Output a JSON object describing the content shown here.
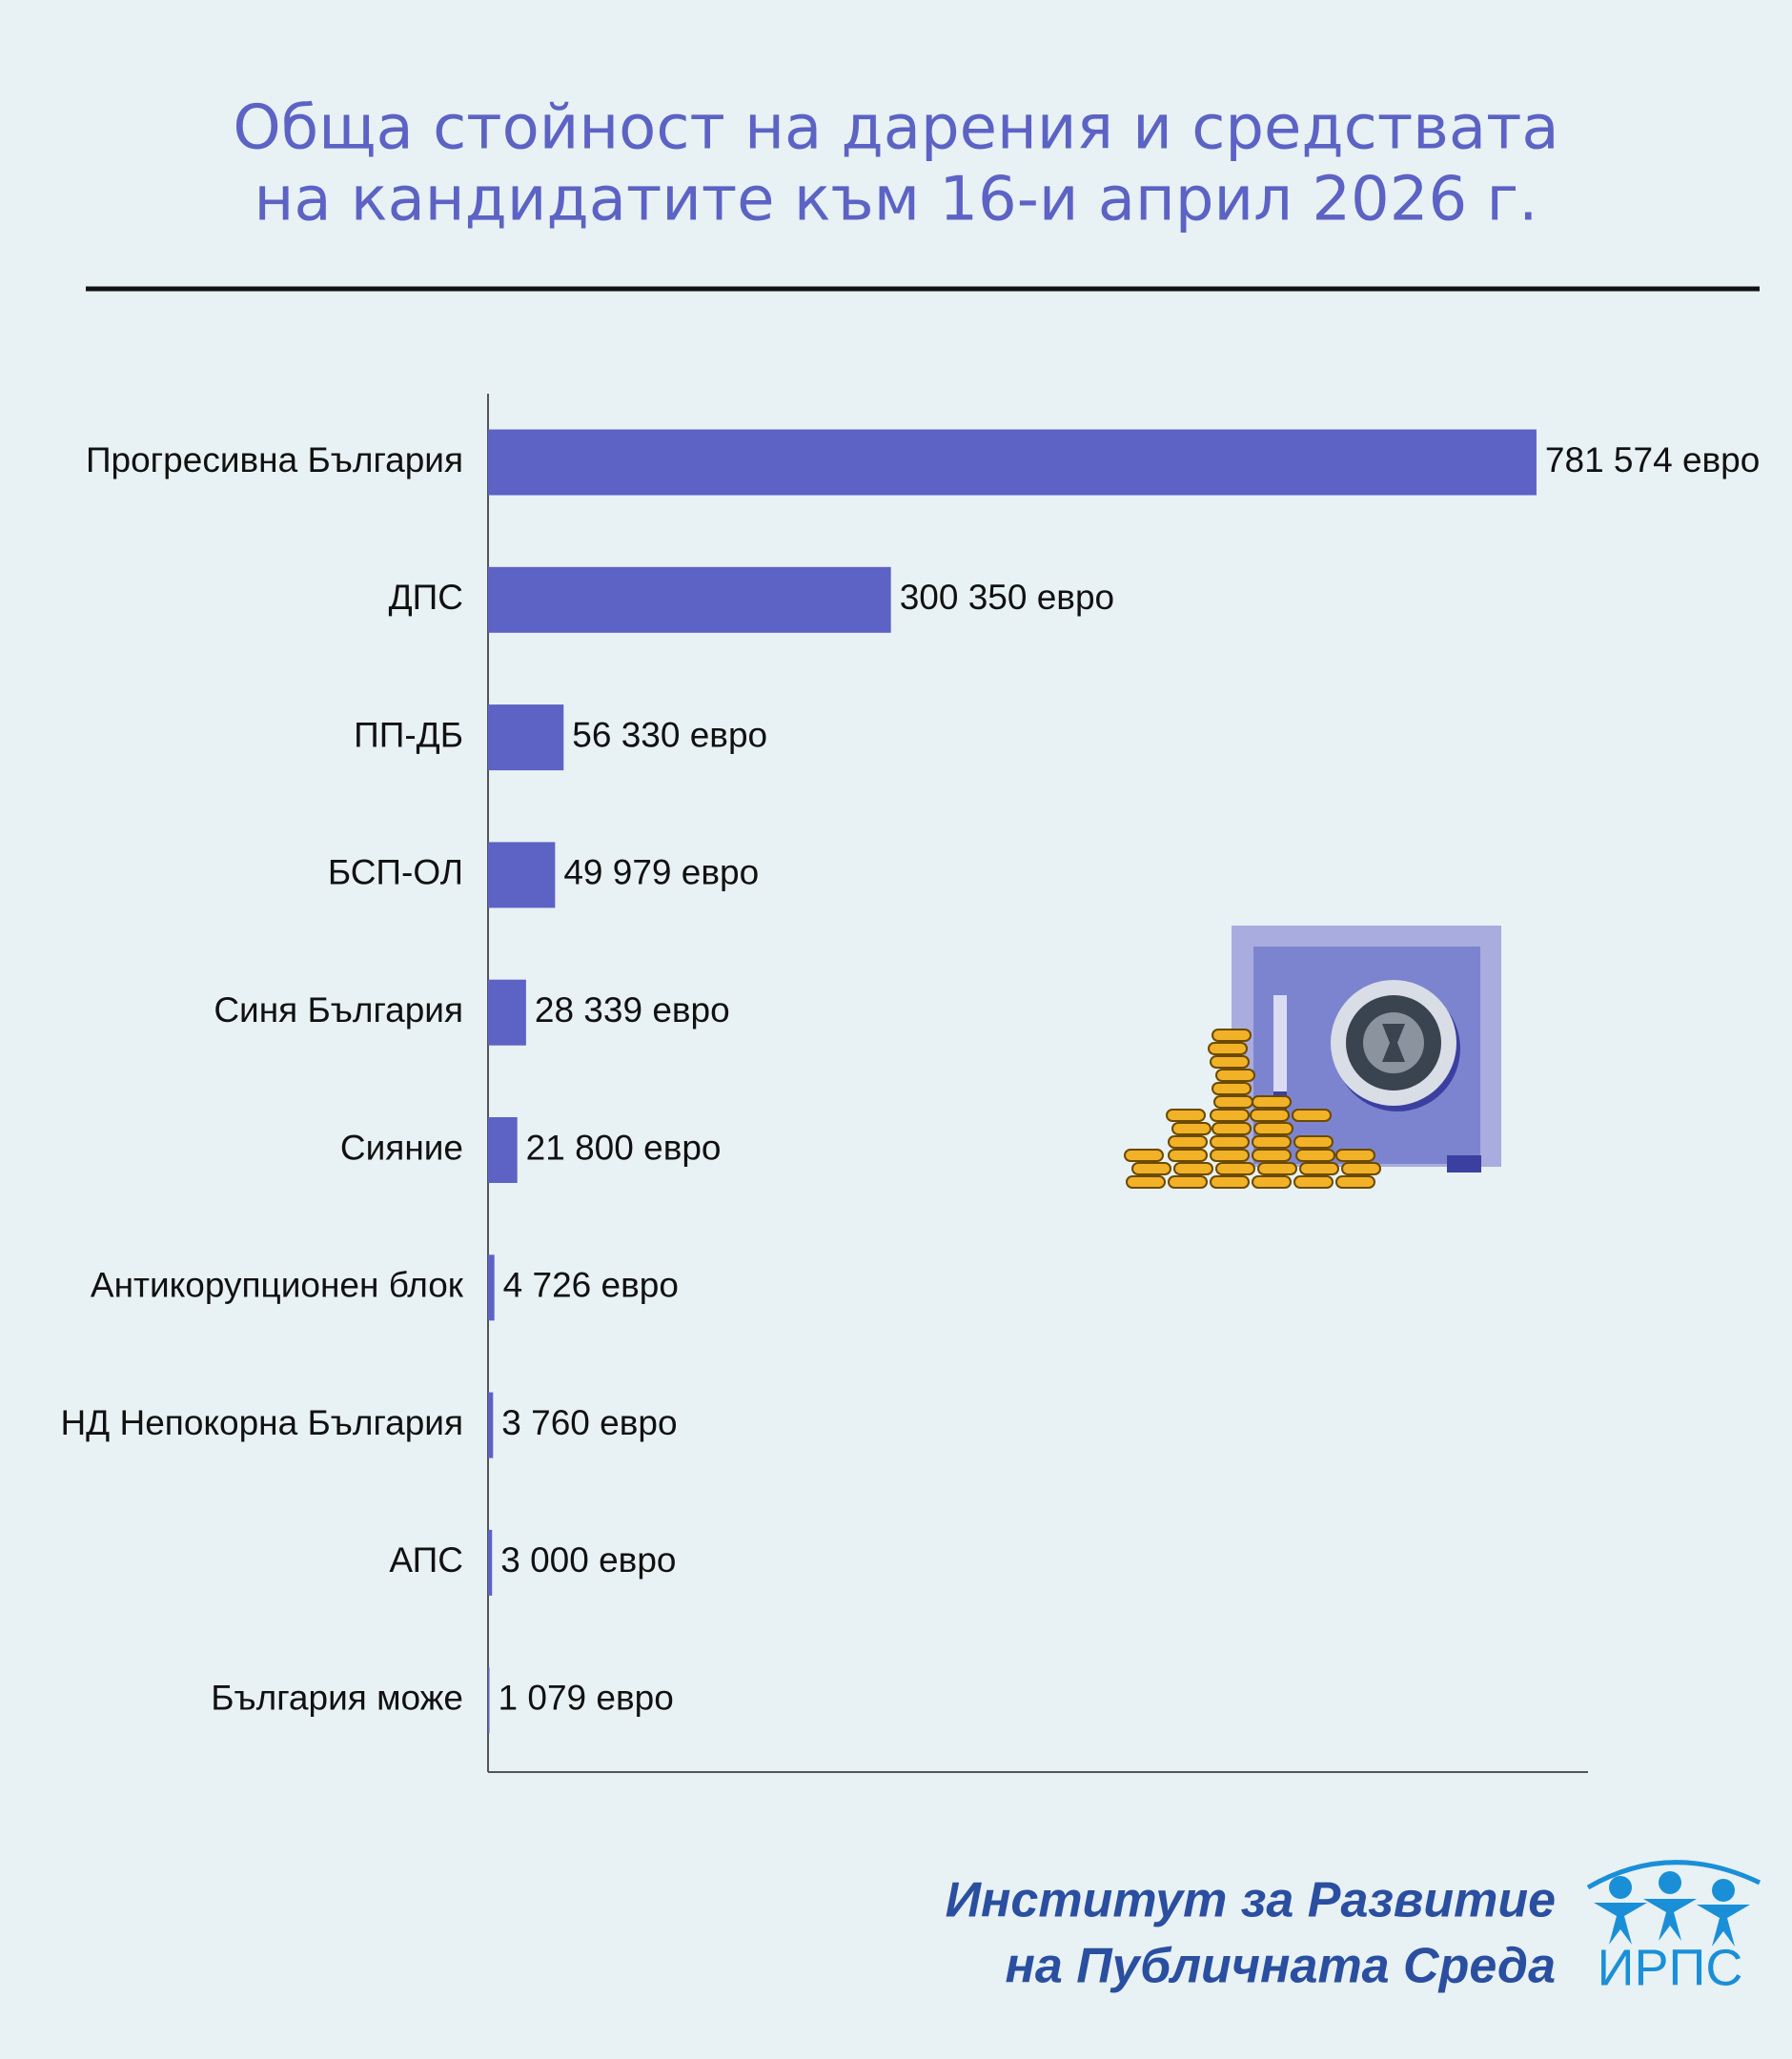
{
  "chart_data": {
    "type": "bar",
    "orientation": "horizontal",
    "title": [
      "Обща стойност на дарения и средствата",
      "на кандидатите към 16-и април 2026 г."
    ],
    "categories": [
      "Прогресивна България",
      "ДПС",
      "ПП-ДБ",
      "БСП-ОЛ",
      "Синя България",
      "Сияние",
      "Антикорупционен блок",
      "НД Непокорна България",
      "АПС",
      "България може"
    ],
    "values": [
      781574,
      300350,
      56330,
      49979,
      28339,
      21800,
      4726,
      3760,
      3000,
      1079
    ],
    "value_labels": [
      "781 574 евро",
      "300 350 евро",
      "56 330 евро",
      "49 979 евро",
      "28 339 евро",
      "21 800 евро",
      "4 726 евро",
      "3 760 евро",
      "3 000 евро",
      "1 079 евро"
    ],
    "color": "#5c63c4",
    "xlim": [
      0,
      820000
    ]
  },
  "footer": {
    "institute": [
      "Институт за Развитие",
      "на Публичната Среда"
    ],
    "logo": "ИРПС"
  }
}
